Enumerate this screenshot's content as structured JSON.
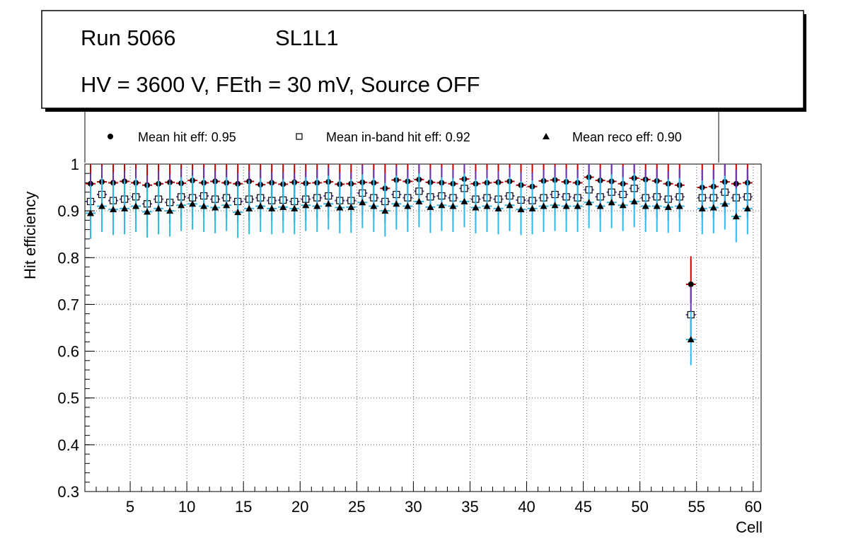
{
  "chart_data": {
    "type": "scatter",
    "title_line1_run": "Run 5066",
    "title_line1_layer": "SL1L1",
    "title_line2": "HV = 3600 V, FEth = 30 mV, Source OFF",
    "xlabel": "Cell",
    "ylabel": "Hit efficiency",
    "xlim": [
      1,
      60.7
    ],
    "ylim": [
      0.3,
      1.0
    ],
    "x_ticks": [
      5,
      10,
      15,
      20,
      25,
      30,
      35,
      40,
      45,
      50,
      55,
      60
    ],
    "y_ticks": [
      0.3,
      0.4,
      0.5,
      0.6,
      0.7,
      0.8,
      0.9,
      1
    ],
    "y_tick_labels": [
      "0.3",
      "0.4",
      "0.5",
      "0.6",
      "0.7",
      "0.8",
      "0.9",
      "1"
    ],
    "grid": true,
    "legend_position": "top",
    "x": [
      1.5,
      2.5,
      3.5,
      4.5,
      5.5,
      6.5,
      7.5,
      8.5,
      9.5,
      10.5,
      11.5,
      12.5,
      13.5,
      14.5,
      15.5,
      16.5,
      17.5,
      18.5,
      19.5,
      20.5,
      21.5,
      22.5,
      23.5,
      24.5,
      25.5,
      26.5,
      27.5,
      28.5,
      29.5,
      30.5,
      31.5,
      32.5,
      33.5,
      34.5,
      35.5,
      36.5,
      37.5,
      38.5,
      39.5,
      40.5,
      41.5,
      42.5,
      43.5,
      44.5,
      45.5,
      46.5,
      47.5,
      48.5,
      49.5,
      50.5,
      51.5,
      52.5,
      53.5,
      54.5,
      55.5,
      56.5,
      57.5,
      58.5,
      59.5
    ],
    "series": [
      {
        "name": "Mean hit  eff: 0.95",
        "marker": "circle",
        "color": "#000000",
        "error_color": "#c00000",
        "error_low": 0.04,
        "error_high": 0.06,
        "values": [
          0.958,
          0.962,
          0.96,
          0.963,
          0.96,
          0.955,
          0.958,
          0.961,
          0.959,
          0.965,
          0.96,
          0.963,
          0.96,
          0.958,
          0.963,
          0.956,
          0.96,
          0.957,
          0.961,
          0.959,
          0.96,
          0.962,
          0.957,
          0.958,
          0.961,
          0.96,
          0.948,
          0.966,
          0.963,
          0.967,
          0.961,
          0.96,
          0.958,
          0.968,
          0.958,
          0.96,
          0.961,
          0.963,
          0.955,
          0.952,
          0.964,
          0.966,
          0.962,
          0.96,
          0.972,
          0.965,
          0.963,
          0.958,
          0.97,
          0.967,
          0.964,
          0.958,
          0.955,
          0.743,
          0.95,
          0.952,
          0.962,
          0.958,
          0.96
        ]
      },
      {
        "name": "Mean in-band hit eff: 0.92",
        "marker": "square",
        "color": "#000000",
        "error_color": "#6633aa",
        "error_low": 0.045,
        "error_high": 0.06,
        "values": [
          0.92,
          0.935,
          0.922,
          0.925,
          0.93,
          0.915,
          0.925,
          0.918,
          0.93,
          0.928,
          0.932,
          0.925,
          0.928,
          0.92,
          0.925,
          0.928,
          0.922,
          0.923,
          0.92,
          0.925,
          0.928,
          0.932,
          0.922,
          0.922,
          0.938,
          0.928,
          0.92,
          0.935,
          0.928,
          0.942,
          0.93,
          0.932,
          0.928,
          0.948,
          0.925,
          0.928,
          0.925,
          0.932,
          0.923,
          0.922,
          0.928,
          0.935,
          0.93,
          0.928,
          0.945,
          0.93,
          0.94,
          0.935,
          0.948,
          0.928,
          0.93,
          0.925,
          0.93,
          0.678,
          0.928,
          0.928,
          0.94,
          0.928,
          0.93
        ]
      },
      {
        "name": "Mean reco eff: 0.90",
        "marker": "triangle",
        "color": "#000000",
        "error_color": "#33b5e5",
        "error_low": 0.055,
        "error_high": 0.06,
        "values": [
          0.895,
          0.91,
          0.903,
          0.905,
          0.91,
          0.898,
          0.905,
          0.9,
          0.912,
          0.915,
          0.91,
          0.907,
          0.912,
          0.897,
          0.905,
          0.91,
          0.905,
          0.908,
          0.905,
          0.912,
          0.91,
          0.915,
          0.907,
          0.908,
          0.918,
          0.91,
          0.9,
          0.915,
          0.91,
          0.92,
          0.908,
          0.912,
          0.91,
          0.92,
          0.907,
          0.91,
          0.905,
          0.912,
          0.903,
          0.905,
          0.91,
          0.912,
          0.91,
          0.91,
          0.918,
          0.91,
          0.918,
          0.912,
          0.92,
          0.91,
          0.91,
          0.908,
          0.91,
          0.625,
          0.905,
          0.907,
          0.915,
          0.888,
          0.905
        ]
      }
    ]
  }
}
